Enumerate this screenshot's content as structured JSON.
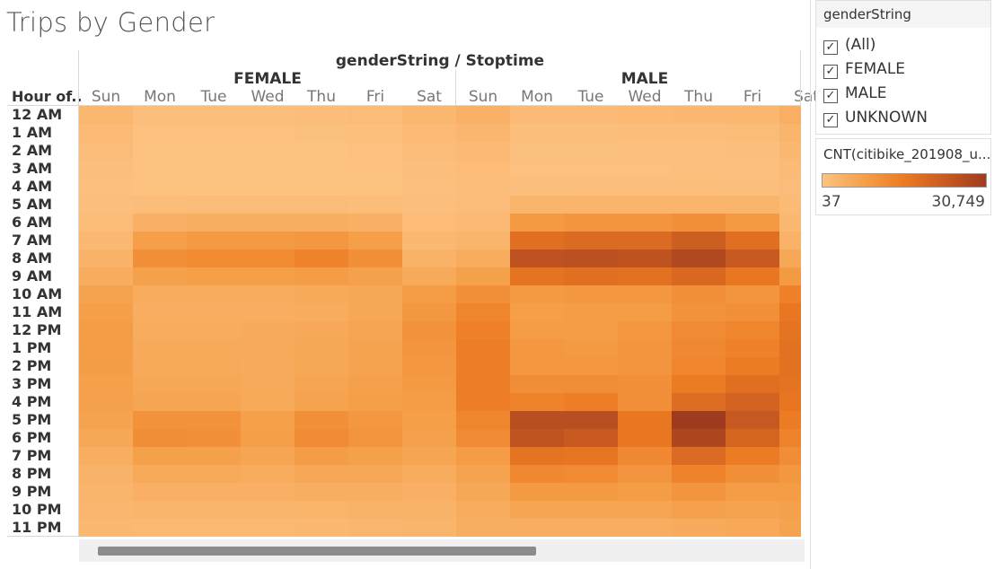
{
  "title": "Trips by Gender",
  "header": {
    "field_title": "genderString / Stoptime",
    "row_field": "Hour of..",
    "groups": [
      "FEMALE",
      "MALE"
    ],
    "days": [
      "Sun",
      "Mon",
      "Tue",
      "Wed",
      "Thu",
      "Fri",
      "Sat"
    ]
  },
  "filter": {
    "title": "genderString",
    "items": [
      {
        "label": "(All)",
        "checked": true
      },
      {
        "label": "FEMALE",
        "checked": true
      },
      {
        "label": "MALE",
        "checked": true
      },
      {
        "label": "UNKNOWN",
        "checked": true
      }
    ]
  },
  "legend": {
    "title": "CNT(citibike_201908_u...",
    "min_label": "37",
    "max_label": "30,749",
    "colors": [
      "#fdc282",
      "#f5a04a",
      "#ec7a22",
      "#c85a21",
      "#9f3c1f"
    ]
  },
  "chart_data": {
    "type": "heatmap",
    "title": "Trips by Gender",
    "column_title": "genderString / Stoptime",
    "row_title": "Hour of..",
    "rows": [
      "12 AM",
      "1 AM",
      "2 AM",
      "3 AM",
      "4 AM",
      "5 AM",
      "6 AM",
      "7 AM",
      "8 AM",
      "9 AM",
      "10 AM",
      "11 AM",
      "12 PM",
      "1 PM",
      "2 PM",
      "3 PM",
      "4 PM",
      "5 PM",
      "6 PM",
      "7 PM",
      "8 PM",
      "9 PM",
      "10 PM",
      "11 PM"
    ],
    "columns": [
      {
        "gender": "FEMALE",
        "day": "Sun"
      },
      {
        "gender": "FEMALE",
        "day": "Mon"
      },
      {
        "gender": "FEMALE",
        "day": "Tue"
      },
      {
        "gender": "FEMALE",
        "day": "Wed"
      },
      {
        "gender": "FEMALE",
        "day": "Thu"
      },
      {
        "gender": "FEMALE",
        "day": "Fri"
      },
      {
        "gender": "FEMALE",
        "day": "Sat"
      },
      {
        "gender": "MALE",
        "day": "Sun"
      },
      {
        "gender": "MALE",
        "day": "Mon"
      },
      {
        "gender": "MALE",
        "day": "Tue"
      },
      {
        "gender": "MALE",
        "day": "Wed"
      },
      {
        "gender": "MALE",
        "day": "Thu"
      },
      {
        "gender": "MALE",
        "day": "Fri"
      },
      {
        "gender": "MALE",
        "day": "Sat"
      }
    ],
    "color_range": [
      37,
      30749
    ],
    "values": [
      [
        2500,
        1000,
        1000,
        1000,
        1200,
        1500,
        2600,
        3800,
        1800,
        1800,
        2000,
        2200,
        2600,
        4300
      ],
      [
        1800,
        500,
        500,
        500,
        600,
        800,
        1800,
        2800,
        1000,
        1000,
        1100,
        1200,
        1500,
        3000
      ],
      [
        1300,
        300,
        300,
        300,
        350,
        500,
        1300,
        2000,
        600,
        600,
        700,
        700,
        900,
        2300
      ],
      [
        900,
        200,
        200,
        200,
        250,
        350,
        900,
        1400,
        500,
        500,
        500,
        550,
        700,
        1600
      ],
      [
        700,
        300,
        300,
        300,
        300,
        350,
        700,
        1100,
        900,
        900,
        900,
        950,
        900,
        1300
      ],
      [
        900,
        1200,
        1300,
        1300,
        1300,
        1200,
        900,
        1300,
        3000,
        3200,
        3200,
        3200,
        3000,
        1600
      ],
      [
        1500,
        4000,
        4500,
        4500,
        4500,
        4000,
        1400,
        1900,
        9000,
        10000,
        10000,
        11000,
        9000,
        2300
      ],
      [
        2200,
        8000,
        9000,
        9000,
        9500,
        8000,
        2300,
        3000,
        18000,
        19000,
        19000,
        22000,
        18000,
        3600
      ],
      [
        3500,
        11000,
        12000,
        12000,
        13500,
        11000,
        3500,
        5000,
        25000,
        25500,
        25000,
        27500,
        23000,
        6000
      ],
      [
        5000,
        7500,
        8000,
        8000,
        8500,
        7500,
        5500,
        7500,
        17000,
        18000,
        17500,
        19500,
        16000,
        9000
      ],
      [
        7000,
        5000,
        5000,
        5000,
        5500,
        6000,
        8500,
        11000,
        9000,
        9500,
        9500,
        11000,
        10000,
        14000
      ],
      [
        8000,
        4700,
        4700,
        4700,
        5000,
        6000,
        9500,
        13000,
        8000,
        8500,
        8500,
        10500,
        11000,
        16000
      ],
      [
        8500,
        5000,
        5000,
        5300,
        5700,
        6500,
        10500,
        14000,
        8500,
        8500,
        9500,
        12000,
        13000,
        17000
      ],
      [
        8500,
        5500,
        5500,
        5500,
        6000,
        7000,
        10000,
        14500,
        9500,
        9000,
        10000,
        12500,
        14000,
        17500
      ],
      [
        8200,
        5500,
        5500,
        5300,
        6000,
        7000,
        9500,
        14500,
        9500,
        9500,
        10000,
        13000,
        15000,
        17500
      ],
      [
        7800,
        6000,
        6000,
        5500,
        6500,
        7500,
        9000,
        14500,
        11500,
        11500,
        11000,
        15000,
        18000,
        17000
      ],
      [
        7500,
        6500,
        6500,
        5500,
        7000,
        8000,
        8500,
        14500,
        13500,
        14500,
        11000,
        18500,
        21000,
        16500
      ],
      [
        7000,
        10500,
        10500,
        7500,
        11000,
        9500,
        8000,
        13000,
        26000,
        26000,
        16000,
        30749,
        23500,
        15000
      ],
      [
        6000,
        11500,
        11000,
        8000,
        12000,
        10000,
        7500,
        12000,
        24500,
        23000,
        16000,
        28000,
        20500,
        13500
      ],
      [
        4500,
        7500,
        7500,
        6500,
        8500,
        7500,
        6500,
        8500,
        17000,
        16500,
        12500,
        19000,
        15000,
        11500
      ],
      [
        3500,
        5500,
        5500,
        5000,
        6000,
        6000,
        5000,
        7000,
        12500,
        12000,
        10000,
        13500,
        11000,
        9500
      ],
      [
        3000,
        4000,
        4000,
        4000,
        4500,
        4500,
        4000,
        6000,
        9000,
        9000,
        8500,
        10000,
        8500,
        8500
      ],
      [
        2700,
        3000,
        3000,
        3000,
        3300,
        3500,
        3500,
        5000,
        6500,
        6500,
        6500,
        7500,
        7000,
        7500
      ],
      [
        2300,
        2000,
        2000,
        2000,
        2300,
        2700,
        3000,
        4500,
        4500,
        4500,
        4700,
        5300,
        5700,
        7000
      ]
    ]
  }
}
